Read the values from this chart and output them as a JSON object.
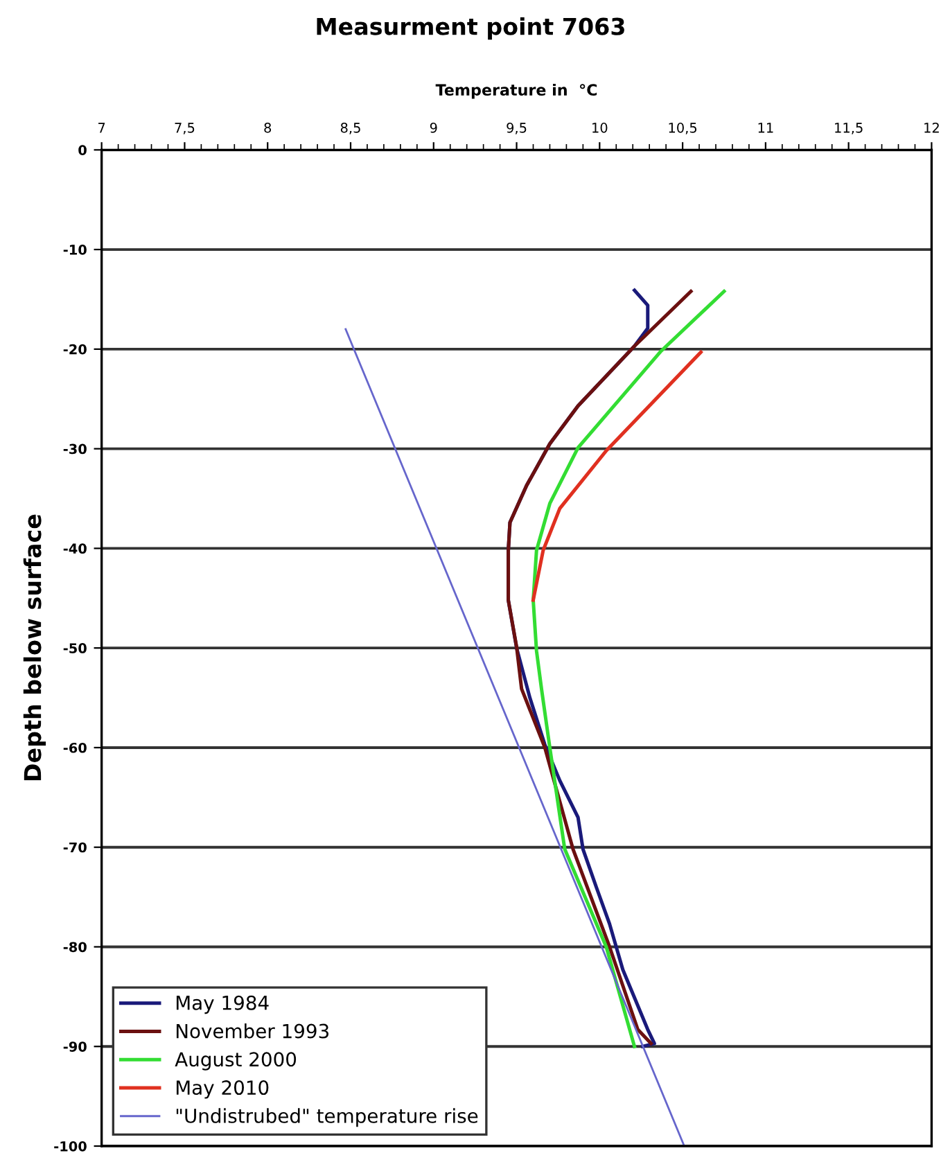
{
  "chart_data": {
    "type": "line",
    "title": "Measurment point 7063",
    "xlabel": "Temperature in  °C",
    "ylabel": "Depth below surface",
    "xlim": [
      7,
      12
    ],
    "ylim": [
      -100,
      0
    ],
    "xticks": [
      7,
      {
        "value": 7.5,
        "label": "7,5"
      },
      8,
      {
        "value": 8.5,
        "label": "8,5"
      },
      9,
      {
        "value": 9.5,
        "label": "9,5"
      },
      10,
      {
        "value": 10.5,
        "label": "10,5"
      },
      11,
      {
        "value": 11.5,
        "label": "11,5"
      },
      12
    ],
    "yticks": [
      0,
      -10,
      -20,
      -30,
      -40,
      -50,
      -60,
      -70,
      -80,
      -90,
      -100
    ],
    "grid": "y",
    "legend": "bottom left",
    "line_style": "solid",
    "marker": "none",
    "series": [
      {
        "name": "May 1984",
        "color": "#1a1a7a",
        "x": [
          10.21,
          10.29,
          10.29,
          10.21,
          9.87,
          9.7,
          9.56,
          9.46,
          9.45,
          9.45,
          9.5,
          9.58,
          9.67,
          9.76,
          9.87,
          9.9,
          9.98,
          10.06,
          10.14,
          10.29,
          10.33,
          10.26
        ],
        "values": [
          -14.1,
          -15.6,
          -17.9,
          -19.7,
          -25.7,
          -29.5,
          -33.7,
          -37.4,
          -40.2,
          -45.2,
          -50,
          -55,
          -59.7,
          -63.3,
          -67,
          -70.2,
          -74,
          -77.7,
          -82.3,
          -88.3,
          -89.7,
          -90
        ]
      },
      {
        "name": "November 1993",
        "color": "#6b1010",
        "x": [
          10.55,
          10.21,
          9.87,
          9.7,
          9.56,
          9.46,
          9.45,
          9.45,
          9.5,
          9.53,
          9.67,
          9.84,
          10.06,
          10.23,
          10.31
        ],
        "values": [
          -14.2,
          -19.7,
          -25.7,
          -29.5,
          -33.7,
          -37.4,
          -40.2,
          -45.2,
          -49.9,
          -54.1,
          -60,
          -70.2,
          -80,
          -88.3,
          -89.7
        ]
      },
      {
        "name": "August 2000",
        "color": "#33dd33",
        "x": [
          10.75,
          10.37,
          9.87,
          9.7,
          9.62,
          9.6,
          9.62,
          9.65,
          9.7,
          9.79,
          10.04,
          10.21
        ],
        "values": [
          -14.2,
          -20.2,
          -29.9,
          -35.5,
          -40.2,
          -45.2,
          -50.3,
          -54.1,
          -60,
          -70.2,
          -80,
          -90
        ]
      },
      {
        "name": "May 2010",
        "color": "#e03020",
        "x": [
          10.61,
          10.04,
          9.76,
          9.66,
          9.6
        ],
        "values": [
          -20.3,
          -30.2,
          -36,
          -40.2,
          -45.2
        ]
      },
      {
        "name": "\"Undistrubed\" temperature rise",
        "color": "#6666cc",
        "x": [
          8.47,
          10.51
        ],
        "values": [
          -18,
          -100
        ]
      }
    ]
  }
}
